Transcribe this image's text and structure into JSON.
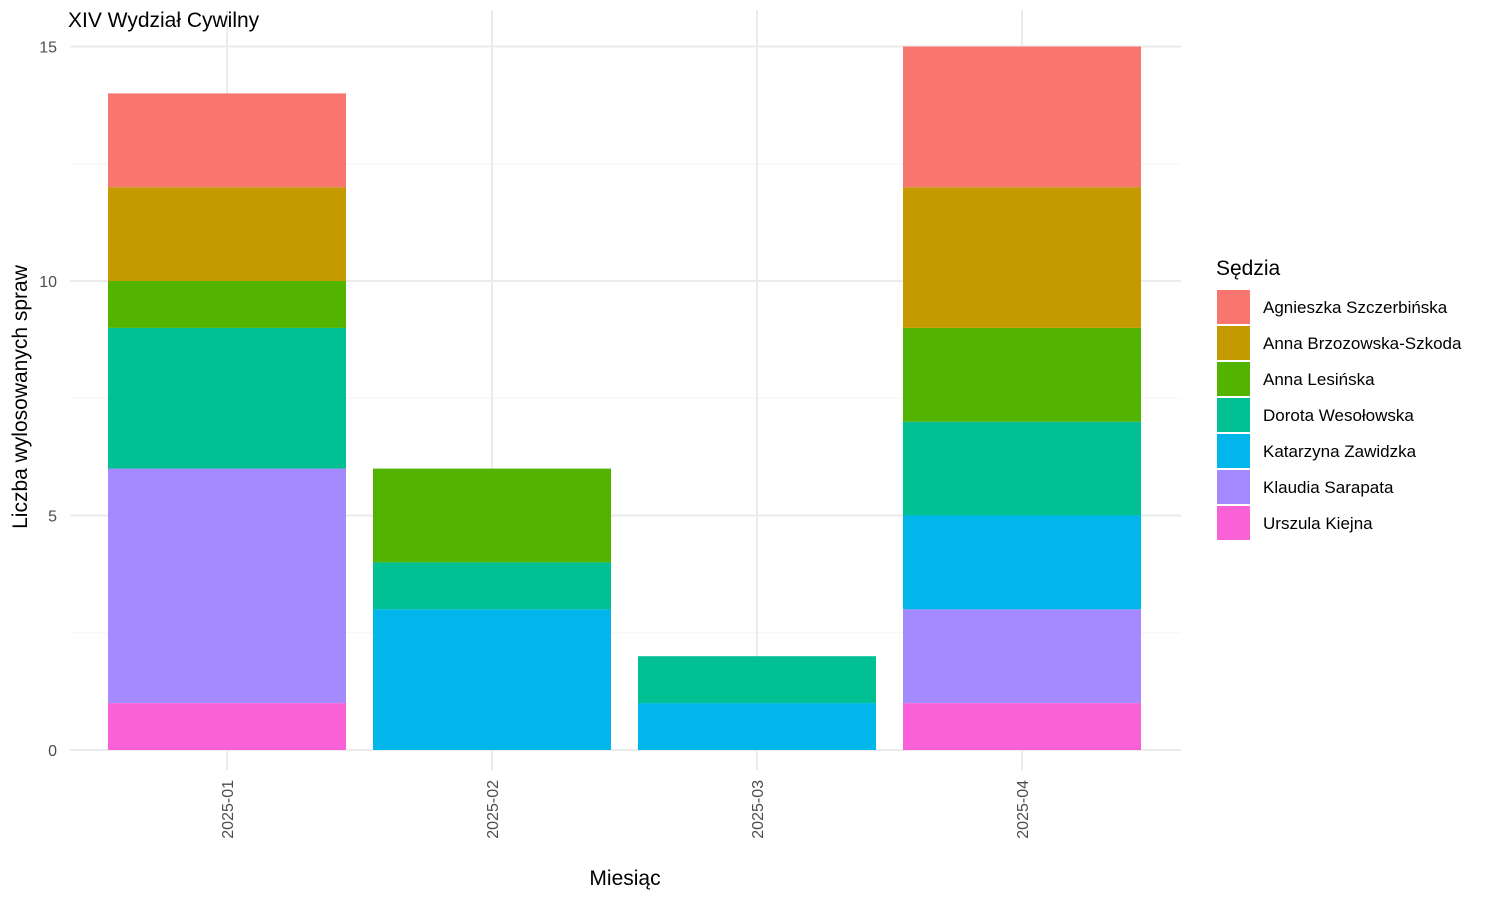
{
  "chart_data": {
    "type": "bar",
    "stacked": true,
    "title": "XIV Wydział Cywilny",
    "xlabel": "Miesiąc",
    "ylabel": "Liczba wylosowanych spraw",
    "categories": [
      "2025-01",
      "2025-02",
      "2025-03",
      "2025-04"
    ],
    "ylim": [
      0,
      15
    ],
    "yticks": [
      0,
      5,
      10,
      15
    ],
    "grid": true,
    "legend": {
      "title": "Sędzia",
      "placement": "right"
    },
    "series": [
      {
        "name": "Agnieszka Szczerbińska",
        "color": "#F8766D",
        "values": [
          2,
          0,
          0,
          3
        ]
      },
      {
        "name": "Anna Brzozowska-Szkoda",
        "color": "#C49A00",
        "values": [
          2,
          0,
          0,
          3
        ]
      },
      {
        "name": "Anna Lesińska",
        "color": "#53B400",
        "values": [
          1,
          2,
          0,
          2
        ]
      },
      {
        "name": "Dorota Wesołowska",
        "color": "#00C094",
        "values": [
          3,
          1,
          1,
          2
        ]
      },
      {
        "name": "Katarzyna Zawidzka",
        "color": "#00B6EB",
        "values": [
          0,
          3,
          1,
          2
        ]
      },
      {
        "name": "Klaudia Sarapata",
        "color": "#A58AFF",
        "values": [
          5,
          0,
          0,
          2
        ]
      },
      {
        "name": "Urszula Kiejna",
        "color": "#FB61D7",
        "values": [
          1,
          0,
          0,
          1
        ]
      }
    ]
  }
}
